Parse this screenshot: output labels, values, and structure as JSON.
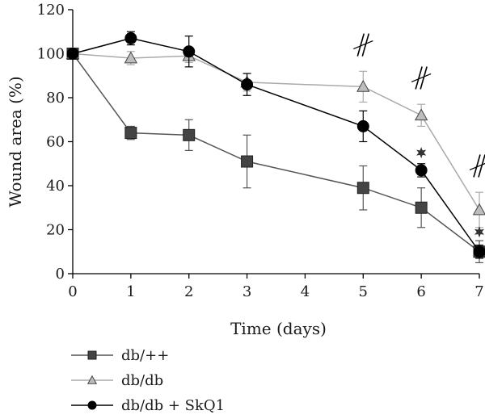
{
  "chart_data": {
    "type": "line",
    "title": "",
    "xlabel": "Time (days)",
    "ylabel": "Wound area (%)",
    "xlim": [
      0,
      7
    ],
    "ylim": [
      0,
      120
    ],
    "x_ticks": [
      0,
      1,
      2,
      3,
      4,
      5,
      6,
      7
    ],
    "y_ticks": [
      0,
      20,
      40,
      60,
      80,
      100,
      120
    ],
    "grid": false,
    "legend_position": "bottom-left",
    "series": [
      {
        "name": "db/++",
        "marker": "square",
        "line_color": "#555555",
        "marker_color": "#444444",
        "x": [
          0,
          1,
          2,
          3,
          5,
          6,
          7
        ],
        "values": [
          100,
          64,
          63,
          51,
          39,
          30,
          10
        ],
        "errors": [
          0,
          3,
          7,
          12,
          10,
          9,
          5
        ]
      },
      {
        "name": "db/db",
        "marker": "triangle",
        "line_color": "#aaaaaa",
        "marker_color": "#bdbdbd",
        "x": [
          0,
          1,
          2,
          3,
          5,
          6,
          7
        ],
        "values": [
          100,
          98,
          99,
          87,
          85,
          72,
          29
        ],
        "errors": [
          0,
          3,
          3,
          4,
          7,
          5,
          8
        ]
      },
      {
        "name": "db/db + SkQ1",
        "marker": "circle",
        "line_color": "#000000",
        "marker_color": "#000000",
        "x": [
          0,
          1,
          2,
          3,
          5,
          6,
          7
        ],
        "values": [
          100,
          107,
          101,
          86,
          67,
          47,
          10
        ],
        "errors": [
          0,
          3,
          7,
          5,
          7,
          3,
          3
        ]
      }
    ],
    "annotations": [
      {
        "type": "double-slash",
        "x": 5,
        "y": 104
      },
      {
        "type": "double-slash",
        "x": 6,
        "y": 89
      },
      {
        "type": "double-slash",
        "x": 7,
        "y": 49
      },
      {
        "type": "star",
        "x": 6,
        "y": 55
      },
      {
        "type": "star",
        "x": 7,
        "y": 19
      }
    ]
  }
}
